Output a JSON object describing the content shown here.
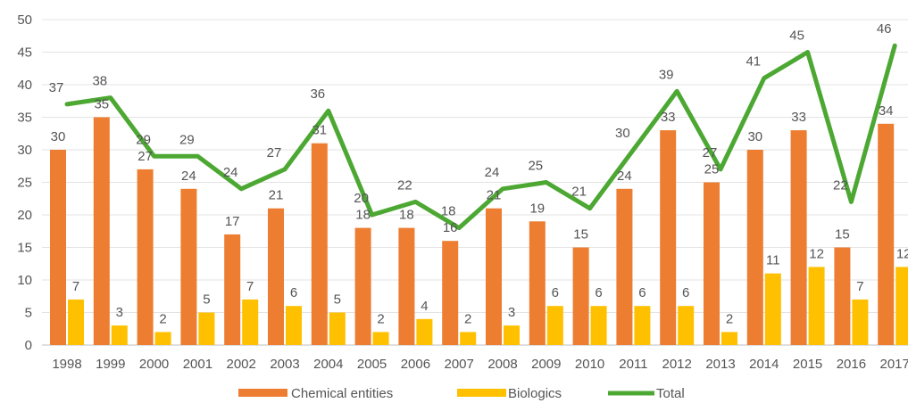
{
  "chart_data": {
    "type": "bar",
    "categories": [
      "1998",
      "1999",
      "2000",
      "2001",
      "2002",
      "2003",
      "2004",
      "2005",
      "2006",
      "2007",
      "2008",
      "2009",
      "2010",
      "2011",
      "2012",
      "2013",
      "2014",
      "2015",
      "2016",
      "2017"
    ],
    "series": [
      {
        "name": "Chemical entities",
        "type": "bar",
        "color": "#ED7D31",
        "values": [
          30,
          35,
          27,
          24,
          17,
          21,
          31,
          18,
          18,
          16,
          21,
          19,
          15,
          24,
          33,
          25,
          30,
          33,
          15,
          34
        ]
      },
      {
        "name": "Biologics",
        "type": "bar",
        "color": "#FFC000",
        "values": [
          7,
          3,
          2,
          5,
          7,
          6,
          5,
          2,
          4,
          2,
          3,
          6,
          6,
          6,
          6,
          2,
          11,
          12,
          7,
          12
        ]
      },
      {
        "name": "Total",
        "type": "line",
        "color": "#4CA832",
        "values": [
          37,
          38,
          29,
          29,
          24,
          27,
          36,
          20,
          22,
          18,
          24,
          25,
          21,
          30,
          39,
          27,
          41,
          45,
          22,
          46
        ]
      }
    ],
    "yticks": [
      "0",
      "5",
      "10",
      "15",
      "20",
      "25",
      "30",
      "35",
      "40",
      "45",
      "50"
    ],
    "ylim": [
      0,
      50
    ],
    "legend_position": "bottom",
    "grid": true
  }
}
